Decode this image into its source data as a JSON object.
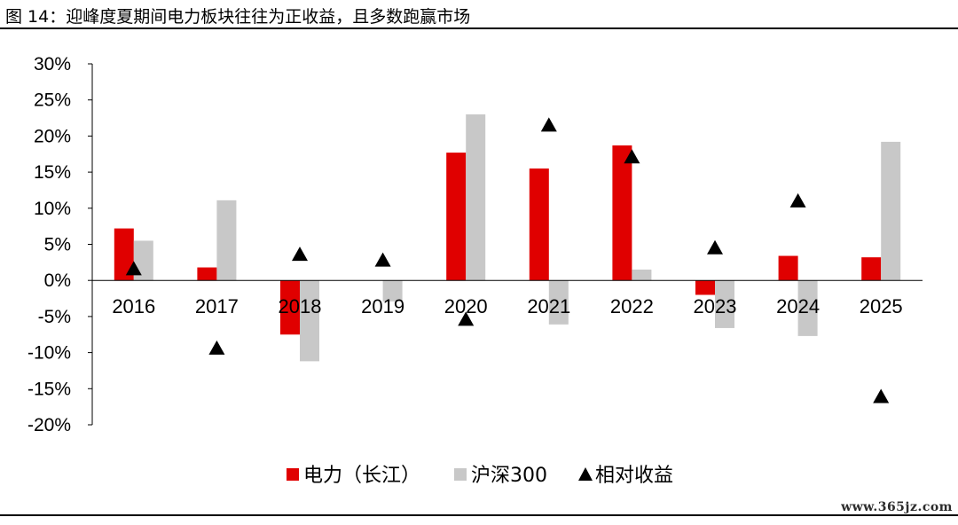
{
  "header": {
    "title": "图 14：迎峰度夏期间电力板块往往为正收益，且多数跑赢市场"
  },
  "footer": {
    "watermark": "www.365jz.com"
  },
  "chart_data": {
    "type": "bar",
    "categories": [
      "2016",
      "2017",
      "2018",
      "2019",
      "2020",
      "2021",
      "2022",
      "2023",
      "2024",
      "2025"
    ],
    "series": [
      {
        "name": "电力（长江）",
        "kind": "bar",
        "color": "#e00000",
        "values": [
          7.2,
          1.8,
          -7.5,
          0.0,
          17.7,
          15.5,
          18.7,
          -2.0,
          3.4,
          3.2
        ]
      },
      {
        "name": "沪深300",
        "kind": "bar",
        "color": "#c8c8c8",
        "values": [
          5.5,
          11.1,
          -11.2,
          -2.9,
          23.0,
          -6.1,
          1.5,
          -6.6,
          -7.7,
          19.2
        ]
      },
      {
        "name": "相对收益",
        "kind": "marker",
        "marker": "triangle",
        "color": "#000000",
        "values": [
          1.7,
          -9.3,
          3.7,
          2.9,
          -5.3,
          21.6,
          17.2,
          4.6,
          11.1,
          -16.0
        ]
      }
    ],
    "yticks": [
      "30%",
      "25%",
      "20%",
      "15%",
      "10%",
      "5%",
      "0%",
      "-5%",
      "-10%",
      "-15%",
      "-20%"
    ],
    "ylim": [
      -20,
      30
    ],
    "ytick_step": 5,
    "legend_position": "bottom-center",
    "grid": false
  }
}
